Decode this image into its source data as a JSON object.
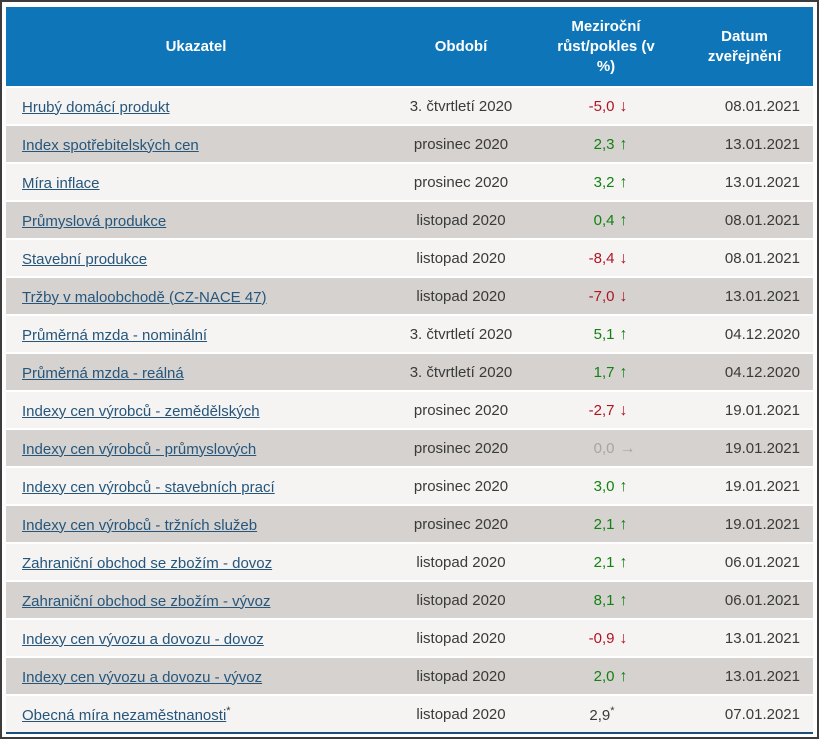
{
  "colors": {
    "header_bg": "#0e76b8",
    "frame_border": "#3c3c3c",
    "bottom_line": "#1e4f7a",
    "link": "#26567c",
    "text": "#3a3a3a",
    "positive": "#118211",
    "negative": "#b01423",
    "neutral": "#a6a6a6",
    "row_light": "#f5f4f2",
    "row_dark": "#d5d2cf"
  },
  "table": {
    "columns": [
      {
        "label": "Ukazatel"
      },
      {
        "label": "Období"
      },
      {
        "label": "Meziroční růst/pokles (v %)"
      },
      {
        "label": "Datum zveřejnění"
      }
    ],
    "trend_glyphs": {
      "up": "↑",
      "down": "↓",
      "flat": "→",
      "none": ""
    },
    "rows": [
      {
        "indicator": "Hrubý domácí produkt",
        "indicator_sup": "",
        "period": "3. čtvrtletí 2020",
        "value": "-5,0",
        "value_sup": "",
        "trend": "down",
        "date": "08.01.2021"
      },
      {
        "indicator": "Index spotřebitelských cen",
        "indicator_sup": "",
        "period": "prosinec 2020",
        "value": "2,3",
        "value_sup": "",
        "trend": "up",
        "date": "13.01.2021"
      },
      {
        "indicator": "Míra inflace",
        "indicator_sup": "",
        "period": "prosinec 2020",
        "value": "3,2",
        "value_sup": "",
        "trend": "up",
        "date": "13.01.2021"
      },
      {
        "indicator": "Průmyslová produkce",
        "indicator_sup": "",
        "period": "listopad 2020",
        "value": "0,4",
        "value_sup": "",
        "trend": "up",
        "date": "08.01.2021"
      },
      {
        "indicator": "Stavební produkce",
        "indicator_sup": "",
        "period": "listopad 2020",
        "value": "-8,4",
        "value_sup": "",
        "trend": "down",
        "date": "08.01.2021"
      },
      {
        "indicator": "Tržby v maloobchodě (CZ-NACE 47)",
        "indicator_sup": "",
        "period": "listopad 2020",
        "value": "-7,0",
        "value_sup": "",
        "trend": "down",
        "date": "13.01.2021"
      },
      {
        "indicator": "Průměrná mzda - nominální",
        "indicator_sup": "",
        "period": "3. čtvrtletí 2020",
        "value": "5,1",
        "value_sup": "",
        "trend": "up",
        "date": "04.12.2020"
      },
      {
        "indicator": "Průměrná mzda - reálná",
        "indicator_sup": "",
        "period": "3. čtvrtletí 2020",
        "value": "1,7",
        "value_sup": "",
        "trend": "up",
        "date": "04.12.2020"
      },
      {
        "indicator": "Indexy cen výrobců - zemědělských",
        "indicator_sup": "",
        "period": "prosinec 2020",
        "value": "-2,7",
        "value_sup": "",
        "trend": "down",
        "date": "19.01.2021"
      },
      {
        "indicator": "Indexy cen výrobců - průmyslových",
        "indicator_sup": "",
        "period": "prosinec 2020",
        "value": "0,0",
        "value_sup": "",
        "trend": "flat",
        "date": "19.01.2021"
      },
      {
        "indicator": "Indexy cen výrobců - stavebních prací",
        "indicator_sup": "",
        "period": "prosinec 2020",
        "value": "3,0",
        "value_sup": "",
        "trend": "up",
        "date": "19.01.2021"
      },
      {
        "indicator": "Indexy cen výrobců - tržních služeb",
        "indicator_sup": "",
        "period": "prosinec 2020",
        "value": "2,1",
        "value_sup": "",
        "trend": "up",
        "date": "19.01.2021"
      },
      {
        "indicator": "Zahraniční obchod se zbožím - dovoz",
        "indicator_sup": "",
        "period": "listopad 2020",
        "value": "2,1",
        "value_sup": "",
        "trend": "up",
        "date": "06.01.2021"
      },
      {
        "indicator": "Zahraniční obchod se zbožím - vývoz",
        "indicator_sup": "",
        "period": "listopad 2020",
        "value": "8,1",
        "value_sup": "",
        "trend": "up",
        "date": "06.01.2021"
      },
      {
        "indicator": "Indexy cen vývozu a dovozu - dovoz",
        "indicator_sup": "",
        "period": "listopad 2020",
        "value": "-0,9",
        "value_sup": "",
        "trend": "down",
        "date": "13.01.2021"
      },
      {
        "indicator": "Indexy cen vývozu a dovozu - vývoz",
        "indicator_sup": "",
        "period": "listopad 2020",
        "value": "2,0",
        "value_sup": "",
        "trend": "up",
        "date": "13.01.2021"
      },
      {
        "indicator": "Obecná míra nezaměstnanosti",
        "indicator_sup": "*",
        "period": "listopad 2020",
        "value": "2,9",
        "value_sup": "*",
        "trend": "none",
        "date": "07.01.2021"
      }
    ]
  }
}
